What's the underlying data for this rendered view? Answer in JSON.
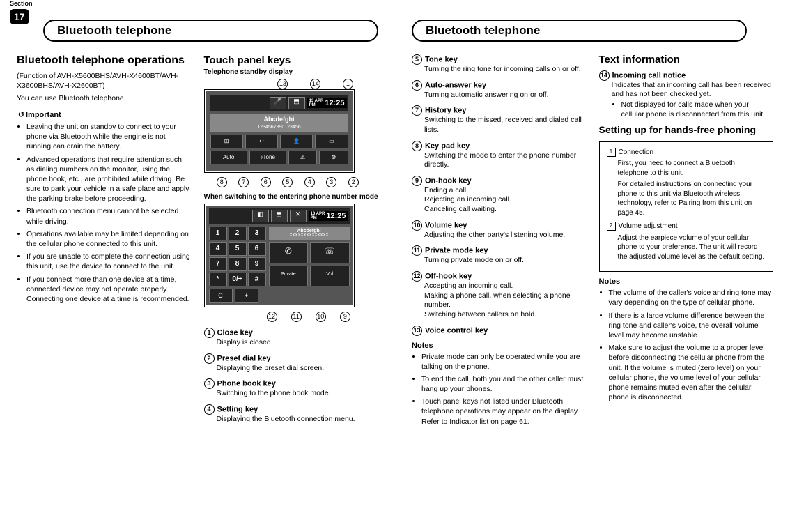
{
  "section_label": "Section",
  "section_number": "17",
  "chapter_title": "Bluetooth telephone",
  "left_page": {
    "col1": {
      "title": "Bluetooth telephone operations",
      "subline": "(Function of AVH-X5600BHS/AVH-X4600BT/AVH-X3600BHS/AVH-X2600BT)",
      "intro": "You can use Bluetooth telephone.",
      "important_label": "Important",
      "bullets": [
        "Leaving the unit on standby to connect to your phone via Bluetooth while the engine is not running can drain the battery.",
        "Advanced operations that require attention such as dialing numbers on the monitor, using the phone book, etc., are prohibited while driving. Be sure to park your vehicle in a safe place and apply the parking brake before proceeding.",
        "Bluetooth connection menu cannot be selected while driving.",
        "Operations available may be limited depending on the cellular phone connected to this unit.",
        "If you are unable to complete the connection using this unit, use the device to connect to the unit.",
        "If you connect more than one device at a time, connected device may not operate properly. Connecting one device at a time is recommended."
      ]
    },
    "col2": {
      "title": "Touch panel keys",
      "caption1": "Telephone standby display",
      "shot1": {
        "top_callouts": [
          "13",
          "14",
          "1"
        ],
        "clock_date": "13 APR",
        "clock_ampm": "PM",
        "clock_time": "12:25",
        "bt_name": "Abcdefghi",
        "bt_sub": "1234567890123456",
        "bottom_callouts": [
          "8",
          "7",
          "6",
          "5",
          "4",
          "3",
          "2"
        ]
      },
      "caption2": "When switching to the entering phone number mode",
      "shot2": {
        "clock_date": "13 APR",
        "clock_ampm": "PM",
        "clock_time": "12:25",
        "disp_name": "Abcdefghi",
        "disp_sub": "XXXXXXXXXXXXXX",
        "keys": [
          "1",
          "2",
          "3",
          "4",
          "5",
          "6",
          "7",
          "8",
          "9",
          "*",
          "0/+",
          "#"
        ],
        "left_keys": [
          "C",
          "+"
        ],
        "bottom_callouts": [
          "12",
          "11",
          "10",
          "9"
        ]
      },
      "keydefs_a": [
        {
          "n": "1",
          "t": "Close key",
          "d": "Display is closed."
        },
        {
          "n": "2",
          "t": "Preset dial key",
          "d": "Displaying the preset dial screen."
        },
        {
          "n": "3",
          "t": "Phone book key",
          "d": "Switching to the phone book mode."
        },
        {
          "n": "4",
          "t": "Setting key",
          "d": "Displaying the Bluetooth connection menu."
        }
      ]
    }
  },
  "right_page": {
    "col1": {
      "keydefs_b": [
        {
          "n": "5",
          "t": "Tone key",
          "d": "Turning the ring tone for incoming calls on or off."
        },
        {
          "n": "6",
          "t": "Auto-answer key",
          "d": "Turning automatic answering on or off."
        },
        {
          "n": "7",
          "t": "History key",
          "d": "Switching to the missed, received and dialed call lists."
        },
        {
          "n": "8",
          "t": "Key pad key",
          "d": "Switching the mode to enter the phone number directly."
        },
        {
          "n": "9",
          "t": "On-hook key",
          "d": "Ending a call.\nRejecting an incoming call.\nCanceling call waiting."
        },
        {
          "n": "10",
          "t": "Volume key",
          "d": "Adjusting the other party's listening volume."
        },
        {
          "n": "11",
          "t": "Private mode key",
          "d": "Turning private mode on or off."
        },
        {
          "n": "12",
          "t": "Off-hook key",
          "d": "Accepting an incoming call.\nMaking a phone call, when selecting a phone number.\nSwitching between callers on hold."
        },
        {
          "n": "13",
          "t": "Voice control key",
          "d": ""
        }
      ],
      "notes_title": "Notes",
      "notes": [
        "Private mode can only be operated while you are talking on the phone.",
        "To end the call, both you and the other caller must hang up your phones.",
        "Touch panel keys not listed under Bluetooth telephone operations may appear on the display.\nRefer to Indicator list on page 61."
      ]
    },
    "col2": {
      "text_info_title": "Text information",
      "text_info": {
        "n": "14",
        "t": "Incoming call notice",
        "d": "Indicates that an incoming call has been received and has not been checked yet.",
        "sub_bullet": "Not displayed for calls made when your cellular phone is disconnected from this unit."
      },
      "setup_title": "Setting up for hands-free phoning",
      "setup_steps": [
        {
          "n": "1",
          "t": "Connection",
          "d": "First, you need to connect a Bluetooth telephone to this unit.\nFor detailed instructions on connecting your phone to this unit via Bluetooth wireless technology, refer to Pairing from this unit on page 45."
        },
        {
          "n": "2",
          "t": "Volume adjustment",
          "d": "Adjust the earpiece volume of your cellular phone to your preference. The unit will record the adjusted volume level as the default setting."
        }
      ],
      "notes_title": "Notes",
      "notes": [
        "The volume of the caller's voice and ring tone may vary depending on the type of cellular phone.",
        "If there is a large volume difference between the ring tone and caller's voice, the overall volume level may become unstable.",
        "Make sure to adjust the volume to a proper level before disconnecting the cellular phone from the unit. If the volume is muted (zero level) on your cellular phone, the volume level of your cellular phone remains muted even after the cellular phone is disconnected."
      ]
    }
  }
}
